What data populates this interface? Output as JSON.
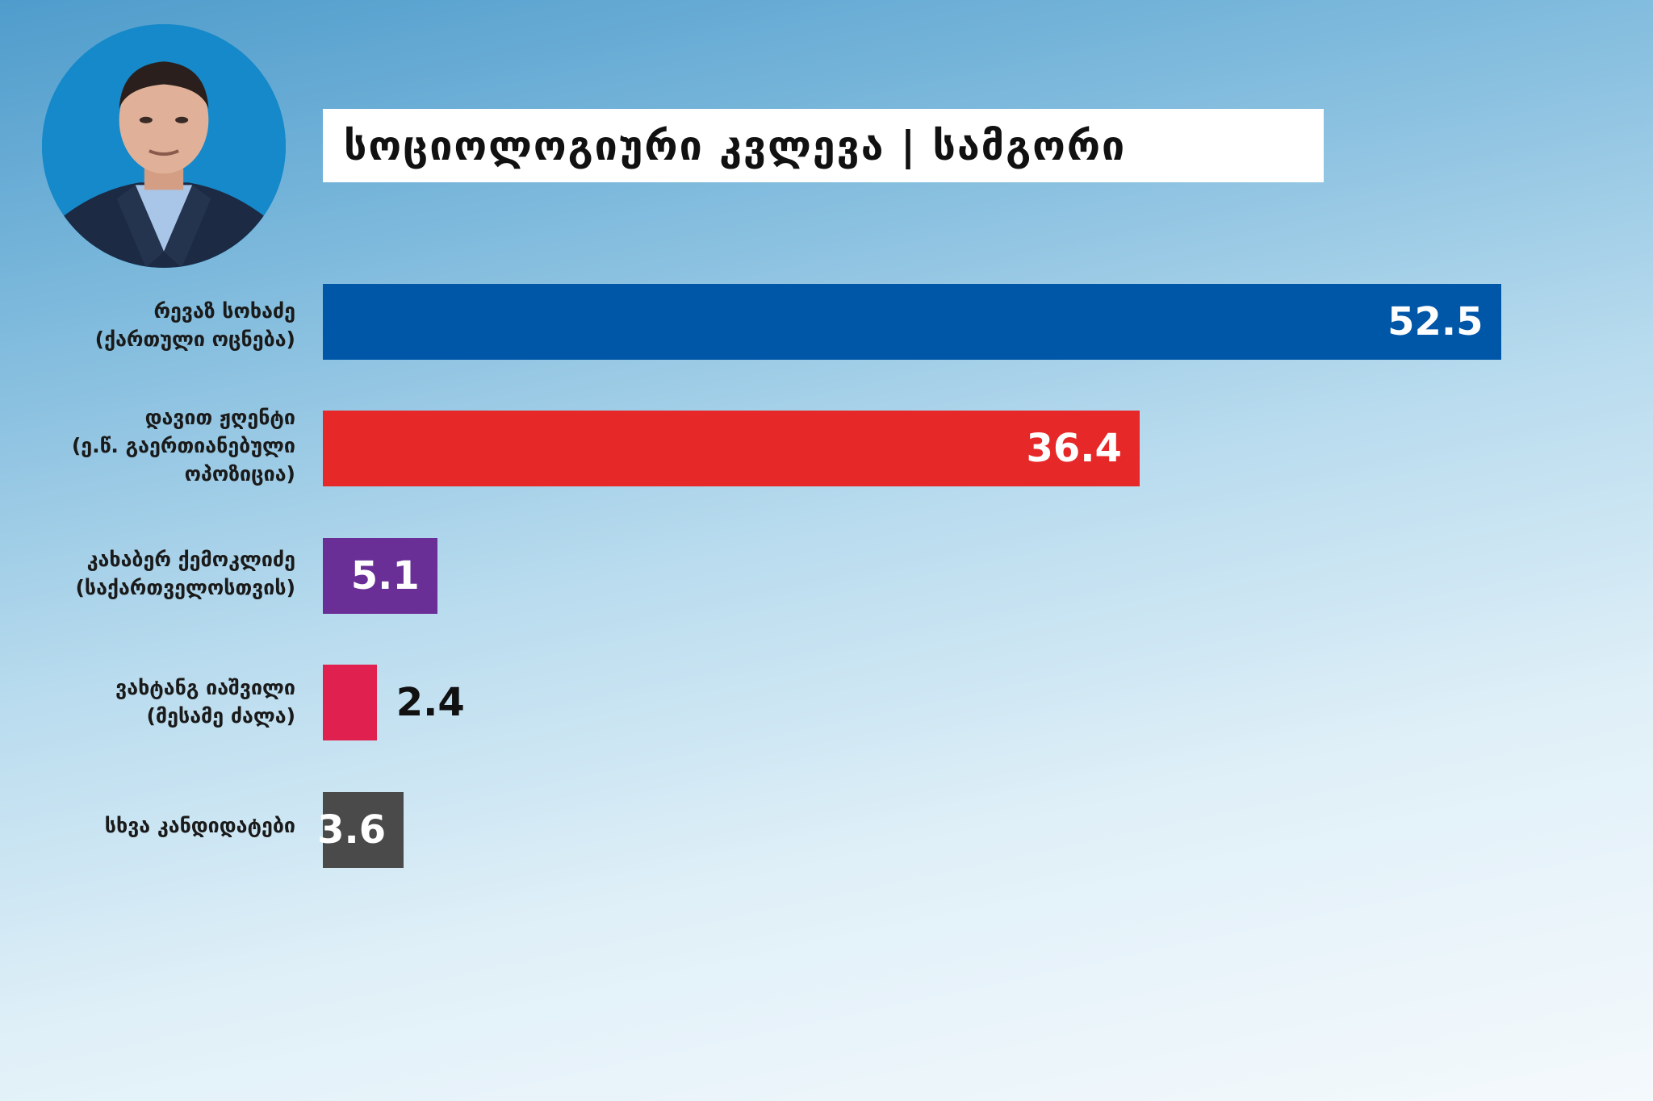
{
  "title": "სოციოლოგიური კვლევა | სამგორი",
  "colors": {
    "bar_1": "#0057a8",
    "bar_2": "#e62828",
    "bar_3": "#6a2f96",
    "bar_4": "#e0204e",
    "bar_5": "#4a4a4a",
    "value_inside": "#ffffff",
    "value_outside": "#111111"
  },
  "candidates": [
    {
      "line1": "რევაზ სოხაძე",
      "line2": "(ქართული ოცნება)",
      "line3": ""
    },
    {
      "line1": "დავით ჟღენტი",
      "line2": "(ე.წ. გაერთიანებული",
      "line3": "ოპოზიცია)"
    },
    {
      "line1": "კახაბერ ქემოკლიძე",
      "line2": "(საქართველოსთვის)",
      "line3": ""
    },
    {
      "line1": "ვახტანგ იაშვილი",
      "line2": "(მესამე ძალა)",
      "line3": ""
    },
    {
      "line1": "სხვა კანდიდატები",
      "line2": "",
      "line3": ""
    }
  ],
  "chart_data": {
    "type": "bar",
    "orientation": "horizontal",
    "title": "სოციოლოგიური კვლევა | სამგორი",
    "categories": [
      "რევაზ სოხაძე (ქართული ოცნება)",
      "დავით ჟღენტი (ე.წ. გაერთიანებული ოპოზიცია)",
      "კახაბერ ქემოკლიძე (საქართველოსთვის)",
      "ვახტანგ იაშვილი (მესამე ძალა)",
      "სხვა კანდიდატები"
    ],
    "values": [
      52.5,
      36.4,
      5.1,
      2.4,
      3.6
    ],
    "value_labels": [
      "52.5",
      "36.4",
      "5.1",
      "2.4",
      "3.6"
    ],
    "value_label_position": [
      "inside",
      "inside",
      "inside",
      "outside",
      "inside"
    ],
    "xlim": [
      0,
      100
    ],
    "grid": false,
    "legend": "none"
  }
}
